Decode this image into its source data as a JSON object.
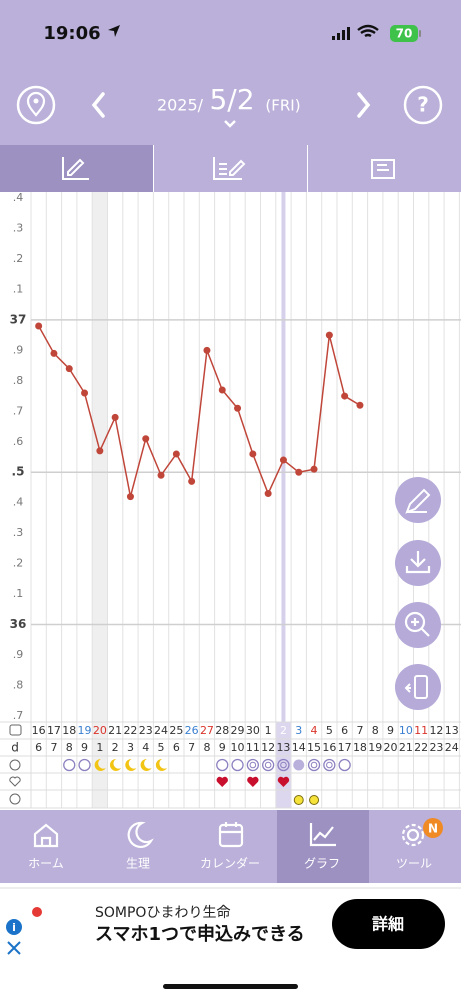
{
  "status_bar": {
    "time": "19:06",
    "battery": "70"
  },
  "header": {
    "year": "2025/",
    "date": "5/2",
    "weekday": "(FRI)"
  },
  "chart_data": {
    "type": "line",
    "categories": [
      "16",
      "17",
      "18",
      "19",
      "20",
      "21",
      "22",
      "23",
      "24",
      "25",
      "26",
      "27",
      "28",
      "29",
      "30",
      "1",
      "2",
      "3",
      "4",
      "5",
      "6",
      "7",
      "8",
      "9",
      "10",
      "11",
      "12",
      "13"
    ],
    "series": [
      {
        "color": "#c0463a",
        "values": [
          36.98,
          36.89,
          36.84,
          36.76,
          36.57,
          36.68,
          36.42,
          36.61,
          36.49,
          36.56,
          36.47,
          36.9,
          36.77,
          36.71,
          36.56,
          36.43,
          36.54,
          36.5,
          36.51,
          36.95,
          36.75,
          36.72,
          null,
          null,
          null,
          null,
          null,
          null
        ]
      }
    ],
    "ylim": [
      35.68,
      37.42
    ],
    "yticks": [
      {
        "value": 37.4,
        "label": ".4"
      },
      {
        "value": 37.3,
        "label": ".3"
      },
      {
        "value": 37.2,
        "label": ".2"
      },
      {
        "value": 37.1,
        "label": ".1"
      },
      37,
      {
        "value": 36.9,
        "label": ".9"
      },
      {
        "value": 36.8,
        "label": ".8"
      },
      {
        "value": 36.7,
        "label": ".7"
      },
      {
        "value": 36.6,
        "label": ".6"
      },
      {
        "value": 36.5,
        "label": ".5"
      },
      {
        "value": 36.4,
        "label": ".4"
      },
      {
        "value": 36.3,
        "label": ".3"
      },
      {
        "value": 36.2,
        "label": ".2"
      },
      {
        "value": 36.1,
        "label": ".1"
      },
      36,
      {
        "value": 35.9,
        "label": ".9"
      },
      {
        "value": 35.8,
        "label": ".8"
      },
      {
        "value": 35.7,
        "label": ".7"
      }
    ],
    "grid": true
  },
  "cycle_row": {
    "label": "d",
    "days": [
      "6",
      "7",
      "8",
      "9",
      "1",
      "2",
      "3",
      "4",
      "5",
      "6",
      "7",
      "8",
      "9",
      "10",
      "11",
      "12",
      "13",
      "14",
      "15",
      "16",
      "17",
      "18",
      "19",
      "20",
      "21",
      "22",
      "23",
      "24"
    ]
  },
  "nav": {
    "items": [
      "ホーム",
      "生理",
      "カレンダー",
      "グラフ",
      "ツール"
    ],
    "badge": "N"
  },
  "ad": {
    "brand": "SOMPOひまわり生命",
    "text": "スマホ1つで申込みできる",
    "button": "詳細"
  }
}
